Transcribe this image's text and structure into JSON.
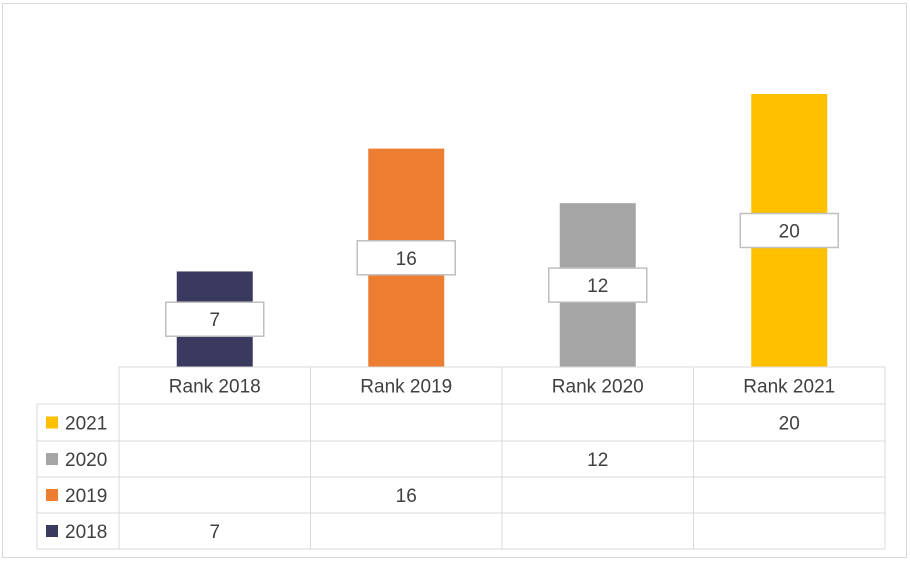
{
  "chart_data": {
    "type": "bar",
    "categories": [
      "Rank 2018",
      "Rank 2019",
      "Rank 2020",
      "Rank 2021"
    ],
    "series": [
      {
        "name": "2018",
        "color": "#3a3960",
        "values": [
          7,
          null,
          null,
          null
        ]
      },
      {
        "name": "2019",
        "color": "#ed7d31",
        "values": [
          null,
          16,
          null,
          null
        ]
      },
      {
        "name": "2020",
        "color": "#a5a5a5",
        "values": [
          null,
          null,
          12,
          null
        ]
      },
      {
        "name": "2021",
        "color": "#ffc000",
        "values": [
          null,
          null,
          null,
          20
        ]
      }
    ],
    "bar_values": [
      7,
      16,
      12,
      20
    ],
    "bar_colors": [
      "#3a3960",
      "#ed7d31",
      "#a5a5a5",
      "#ffc000"
    ],
    "data_table_rows": [
      {
        "legend": "2021",
        "color": "#ffc000",
        "cells": [
          "",
          "",
          "",
          "20"
        ]
      },
      {
        "legend": "2020",
        "color": "#a5a5a5",
        "cells": [
          "",
          "",
          "12",
          ""
        ]
      },
      {
        "legend": "2019",
        "color": "#ed7d31",
        "cells": [
          "",
          "16",
          "",
          ""
        ]
      },
      {
        "legend": "2018",
        "color": "#3a3960",
        "cells": [
          "7",
          "",
          "",
          ""
        ]
      }
    ],
    "ylim": [
      0,
      24
    ],
    "title": "",
    "xlabel": "",
    "ylabel": "",
    "data_labels": true,
    "legend_placement": "data-table"
  }
}
